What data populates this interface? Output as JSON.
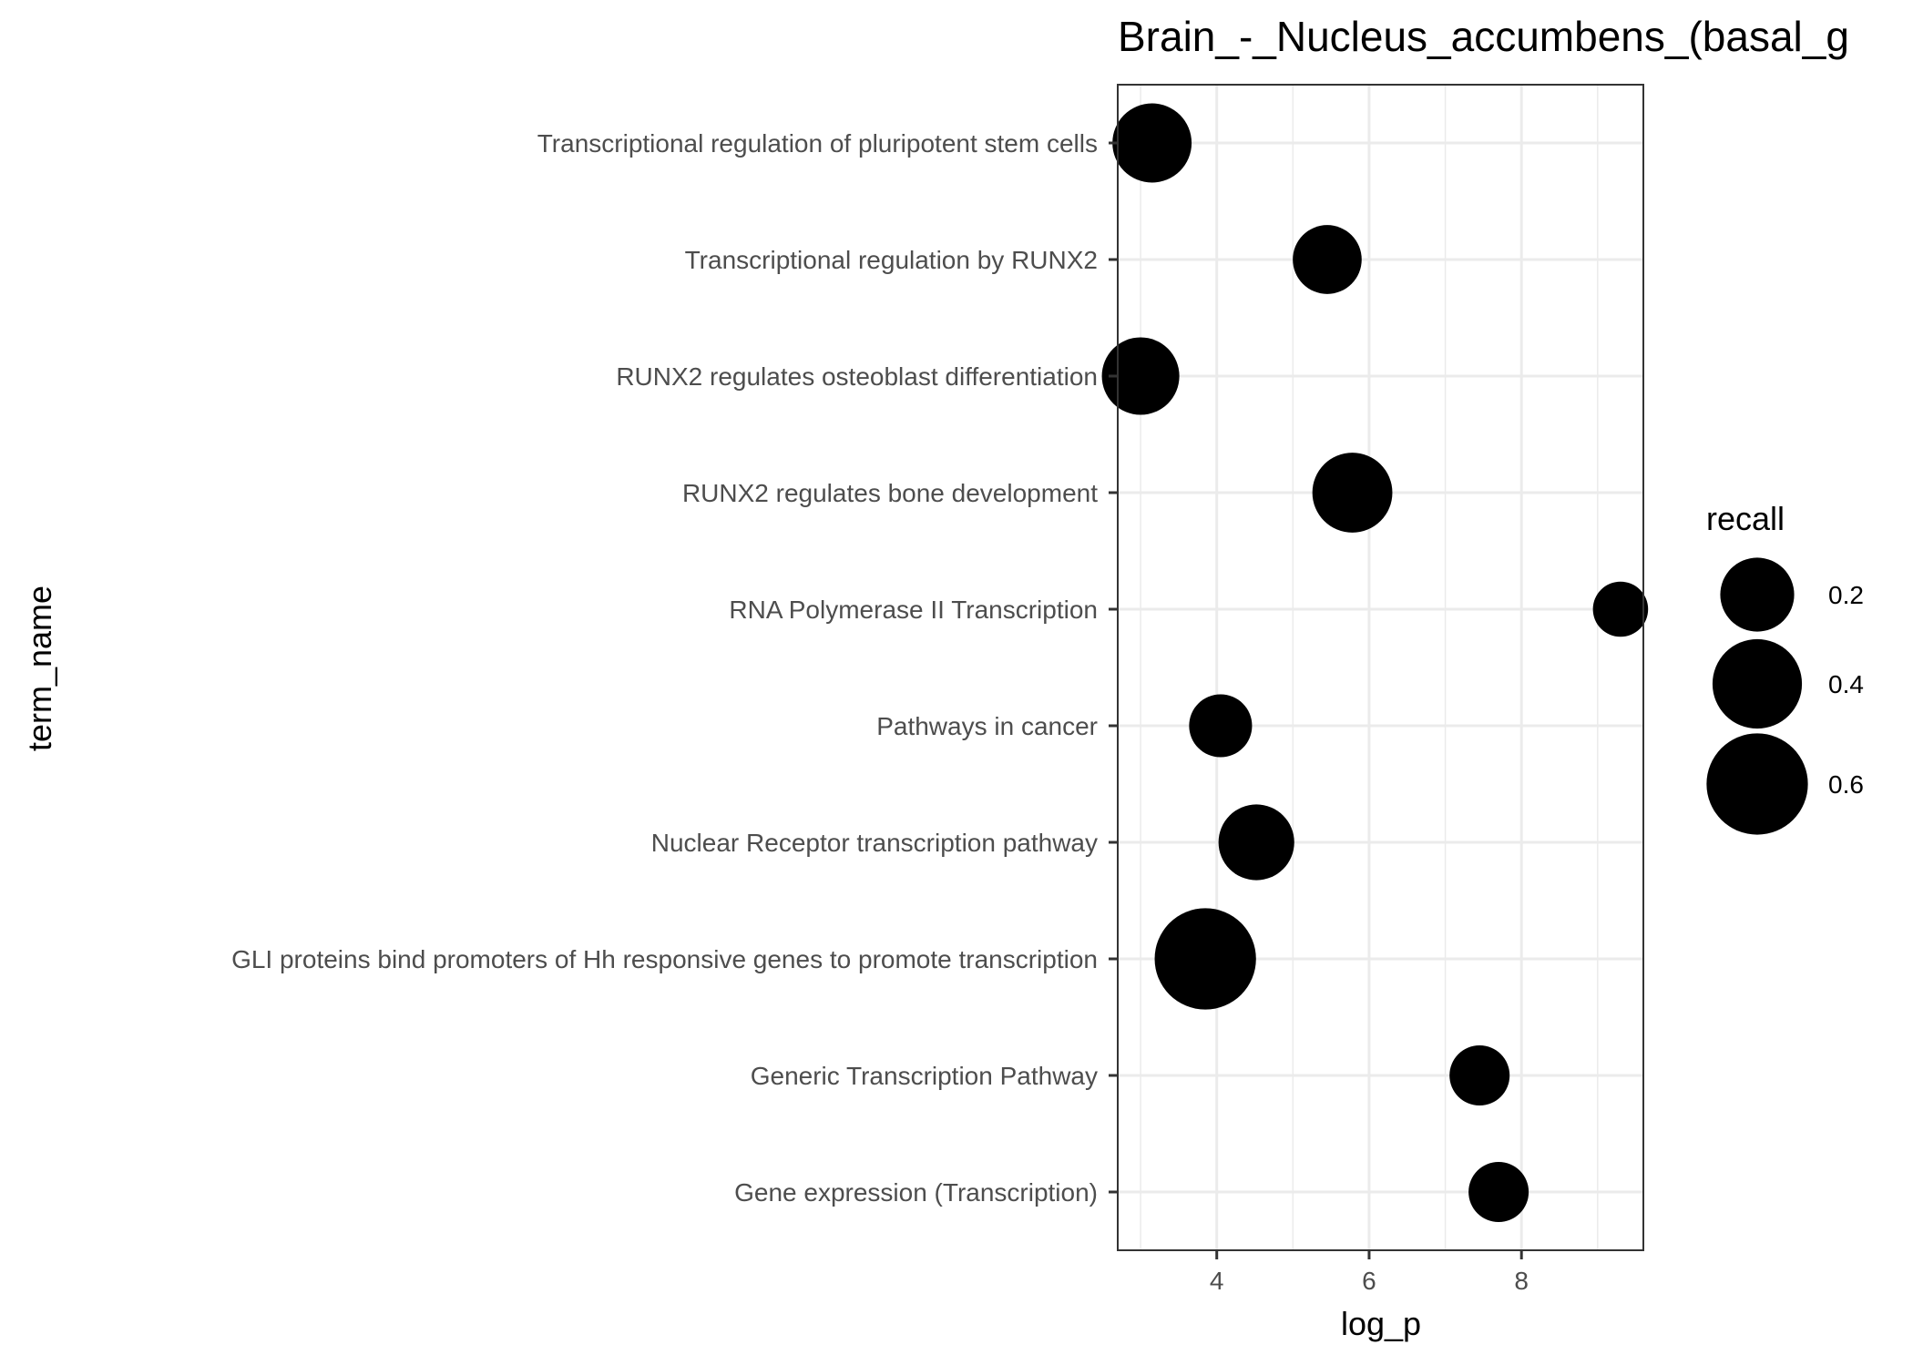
{
  "chart_data": {
    "type": "scatter",
    "title": "Brain_-_Nucleus_accumbens_(basal_g",
    "xlabel": "log_p",
    "ylabel": "term_name",
    "xlim": [
      2.7,
      9.6
    ],
    "x_ticks": [
      4,
      6,
      8
    ],
    "grid": true,
    "legend_position": "right",
    "size_legend": {
      "title": "recall",
      "values": [
        0.2,
        0.4,
        0.6
      ],
      "labels": [
        "0.2",
        "0.4",
        "0.6"
      ]
    },
    "point_color": "#000000",
    "categories": [
      "Transcriptional regulation of pluripotent stem cells",
      "Transcriptional regulation by RUNX2",
      "RUNX2 regulates osteoblast differentiation",
      "RUNX2 regulates bone development",
      "RNA Polymerase II Transcription",
      "Pathways in cancer",
      "Nuclear Receptor transcription pathway",
      "GLI proteins bind promoters of Hh responsive genes to promote transcription",
      "Generic Transcription Pathway",
      "Gene expression (Transcription)"
    ],
    "points": [
      {
        "term": "Transcriptional regulation of pluripotent stem cells",
        "log_p": 3.15,
        "recall": 0.26
      },
      {
        "term": "Transcriptional regulation by RUNX2",
        "log_p": 5.45,
        "recall": 0.15
      },
      {
        "term": "RUNX2 regulates osteoblast differentiation",
        "log_p": 3.0,
        "recall": 0.24
      },
      {
        "term": "RUNX2 regulates bone development",
        "log_p": 5.78,
        "recall": 0.27
      },
      {
        "term": "RNA Polymerase II Transcription",
        "log_p": 9.3,
        "recall": 0.05
      },
      {
        "term": "Pathways in cancer",
        "log_p": 4.05,
        "recall": 0.1
      },
      {
        "term": "Nuclear Receptor transcription pathway",
        "log_p": 4.52,
        "recall": 0.22
      },
      {
        "term": "GLI proteins bind promoters of Hh responsive genes to promote transcription",
        "log_p": 3.85,
        "recall": 0.6
      },
      {
        "term": "Generic Transcription Pathway",
        "log_p": 7.45,
        "recall": 0.08
      },
      {
        "term": "Gene expression (Transcription)",
        "log_p": 7.7,
        "recall": 0.08
      }
    ]
  }
}
